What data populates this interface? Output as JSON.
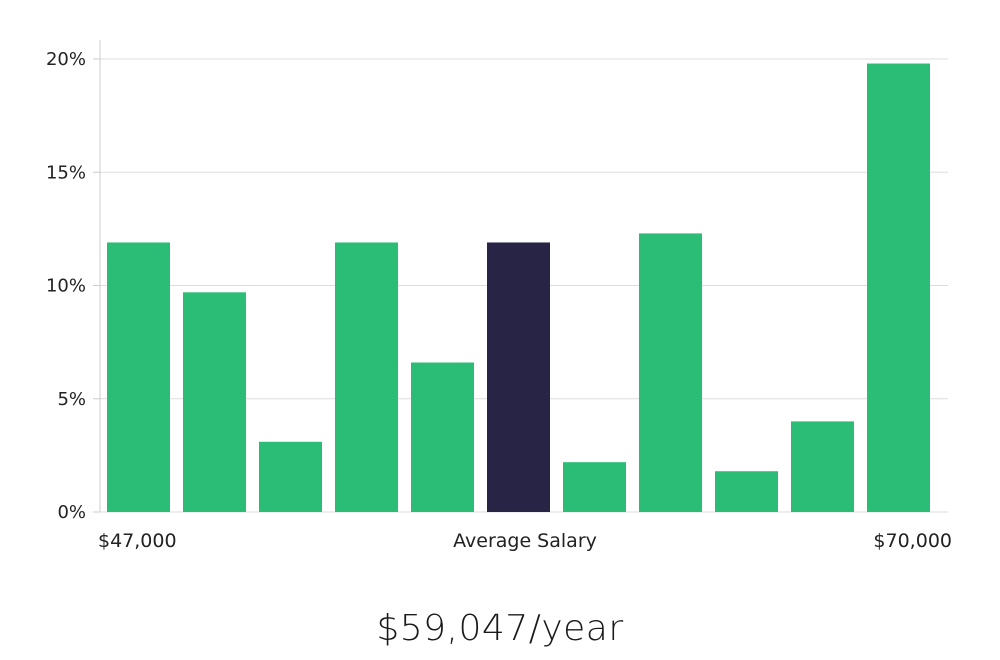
{
  "chart_data": {
    "type": "bar",
    "values": [
      11.9,
      9.7,
      3.1,
      11.9,
      6.6,
      11.9,
      2.2,
      12.3,
      1.8,
      4.0,
      19.8
    ],
    "highlight_index": 5,
    "bar_color": "#2bbd75",
    "highlight_color": "#282446",
    "ylim": [
      0,
      20
    ],
    "yticks": [
      0,
      5,
      10,
      15,
      20
    ],
    "ytick_format": "{}%",
    "grid": true,
    "x_labels": {
      "left": "$47,000",
      "center": "Average Salary",
      "right": "$70,000"
    }
  },
  "salary": {
    "text": "$59,047/year"
  }
}
